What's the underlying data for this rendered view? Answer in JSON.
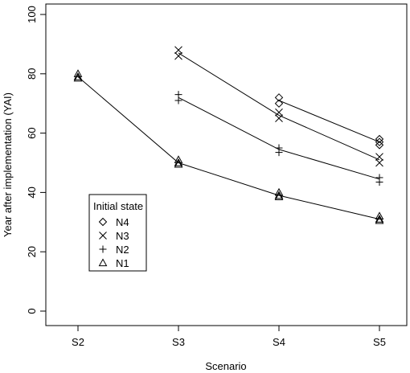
{
  "chart_data": {
    "type": "scatter",
    "xlabel": "Scenario",
    "ylabel": "Year after implementation (YAI)",
    "categories": [
      "S2",
      "S3",
      "S4",
      "S5"
    ],
    "ylim": [
      0,
      100
    ],
    "yticks": [
      0,
      20,
      40,
      60,
      80,
      100
    ],
    "legend": {
      "title": "Initial state",
      "position": "bottom-left",
      "entries": [
        {
          "label": "N4",
          "marker": "diamond"
        },
        {
          "label": "N3",
          "marker": "x"
        },
        {
          "label": "N2",
          "marker": "plus"
        },
        {
          "label": "N1",
          "marker": "triangle"
        }
      ]
    },
    "series": [
      {
        "name": "N4",
        "marker": "diamond",
        "points": [
          {
            "x": "S4",
            "y": [
              72,
              70
            ]
          },
          {
            "x": "S5",
            "y": [
              58,
              57,
              56
            ]
          }
        ],
        "line": [
          {
            "x": "S4",
            "y": 71
          },
          {
            "x": "S5",
            "y": 57
          }
        ]
      },
      {
        "name": "N3",
        "marker": "x",
        "points": [
          {
            "x": "S3",
            "y": [
              88,
              86
            ]
          },
          {
            "x": "S4",
            "y": [
              67,
              65
            ]
          },
          {
            "x": "S5",
            "y": [
              52,
              50
            ]
          }
        ],
        "line": [
          {
            "x": "S3",
            "y": 87
          },
          {
            "x": "S4",
            "y": 66
          },
          {
            "x": "S5",
            "y": 51
          }
        ]
      },
      {
        "name": "N2",
        "marker": "plus",
        "points": [
          {
            "x": "S3",
            "y": [
              73,
              71
            ]
          },
          {
            "x": "S4",
            "y": [
              55,
              53.5
            ]
          },
          {
            "x": "S5",
            "y": [
              45,
              43.5
            ]
          }
        ],
        "line": [
          {
            "x": "S3",
            "y": 72
          },
          {
            "x": "S4",
            "y": 54.5
          },
          {
            "x": "S5",
            "y": 44.5
          }
        ]
      },
      {
        "name": "N1",
        "marker": "triangle",
        "points": [
          {
            "x": "S2",
            "y": [
              80,
              79,
              78.5
            ]
          },
          {
            "x": "S3",
            "y": [
              51,
              50,
              49.5
            ]
          },
          {
            "x": "S4",
            "y": [
              40,
              39,
              38.5
            ]
          },
          {
            "x": "S5",
            "y": [
              32,
              31,
              30.5
            ]
          }
        ],
        "line": [
          {
            "x": "S2",
            "y": 79
          },
          {
            "x": "S3",
            "y": 50
          },
          {
            "x": "S4",
            "y": 39
          },
          {
            "x": "S5",
            "y": 31
          }
        ]
      }
    ]
  }
}
